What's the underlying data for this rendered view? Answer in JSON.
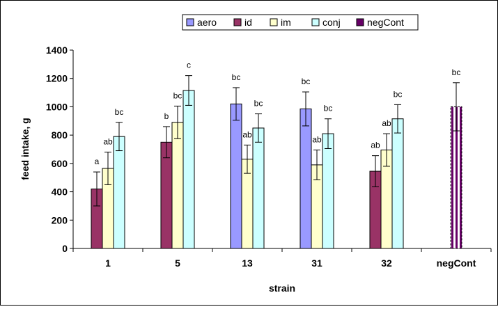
{
  "chart_data": {
    "type": "bar",
    "xlabel": "strain",
    "ylabel": "feed intake, g",
    "ylim": [
      0,
      1400
    ],
    "yticks": [
      0,
      200,
      400,
      600,
      800,
      1000,
      1200,
      1400
    ],
    "grid": false,
    "legend_placement": "top-center",
    "categories": [
      "1",
      "5",
      "13",
      "31",
      "32",
      "negCont"
    ],
    "series": [
      {
        "name": "aero",
        "color": "#9999FF",
        "pattern": "solid",
        "values": [
          null,
          null,
          1020,
          985,
          null,
          null
        ],
        "errors": [
          null,
          null,
          115,
          120,
          null,
          null
        ],
        "labels": [
          null,
          null,
          "bc",
          "bc",
          null,
          null
        ]
      },
      {
        "name": "id",
        "color": "#993366",
        "pattern": "solid",
        "values": [
          420,
          750,
          null,
          null,
          545,
          null
        ],
        "errors": [
          120,
          110,
          null,
          null,
          110,
          null
        ],
        "labels": [
          "a",
          "b",
          null,
          null,
          "ab",
          null
        ]
      },
      {
        "name": "im",
        "color": "#FFFFCC",
        "pattern": "solid",
        "values": [
          565,
          890,
          630,
          590,
          695,
          null
        ],
        "errors": [
          115,
          115,
          100,
          105,
          115,
          null
        ],
        "labels": [
          "ab",
          "bc",
          "ab",
          "ab",
          "ab",
          null
        ]
      },
      {
        "name": "conj",
        "color": "#CCFFFF",
        "pattern": "solid",
        "values": [
          790,
          1115,
          850,
          810,
          915,
          null
        ],
        "errors": [
          100,
          105,
          100,
          105,
          100,
          null
        ],
        "labels": [
          "bc",
          "c",
          "bc",
          "bc",
          "bc",
          null
        ]
      },
      {
        "name": "negCont",
        "color": "#660066",
        "pattern": "striped",
        "values": [
          null,
          null,
          null,
          null,
          null,
          1000
        ],
        "errors": [
          null,
          null,
          null,
          null,
          null,
          170
        ],
        "labels": [
          null,
          null,
          null,
          null,
          null,
          "bc"
        ]
      }
    ]
  }
}
